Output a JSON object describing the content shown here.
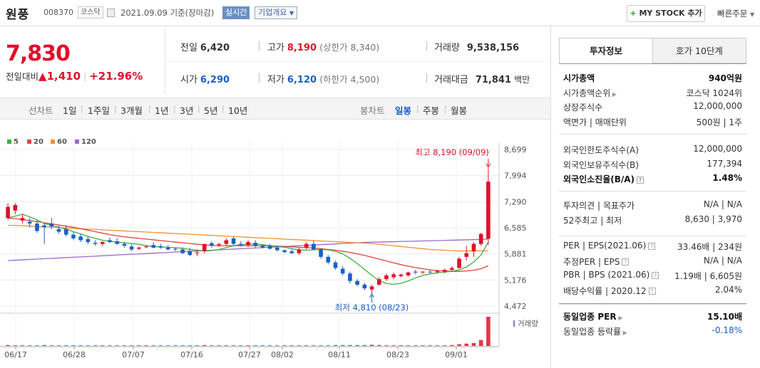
{
  "header": {
    "stock_name": "원풍",
    "stock_code": "008370",
    "market": "코스닥",
    "date": "2021.09.09 기준(장마감)",
    "realtime_label": "실시간",
    "corp_info_label": "기업개요",
    "my_stock_label": "MY STOCK 추가",
    "quick_order_label": "빠른주문"
  },
  "price": {
    "current": "7,830",
    "change_label": "전일대비",
    "change_value": "1,410",
    "change_pct": "+21.96%"
  },
  "stats": {
    "prev_label": "전일",
    "prev_value": "6,420",
    "high_label": "고가",
    "high_value": "8,190",
    "upper_limit": "(상한가 8,340)",
    "volume_label": "거래량",
    "volume_value": "9,538,156",
    "open_label": "시가",
    "open_value": "6,290",
    "low_label": "저가",
    "low_value": "6,120",
    "lower_limit": "(하한가 4,500)",
    "amount_label": "거래대금",
    "amount_value": "71,841",
    "amount_unit": "백만"
  },
  "period_tabs": {
    "line_label": "선차트",
    "line_items": [
      "1일",
      "1주일",
      "3개월",
      "1년",
      "3년",
      "5년",
      "10년"
    ],
    "candle_label": "봉차트",
    "candle_items": [
      "일봉",
      "주봉",
      "월봉"
    ],
    "selected_candle": "일봉"
  },
  "legend": [
    {
      "name": "5",
      "color": "#3fae3f"
    },
    {
      "name": "20",
      "color": "#e0443c"
    },
    {
      "name": "60",
      "color": "#f0932b"
    },
    {
      "name": "120",
      "color": "#9b6bcc"
    }
  ],
  "chart_data": {
    "type": "candlestick",
    "y_ticks": [
      "8,699",
      "7,994",
      "7,290",
      "6,585",
      "5,881",
      "5,176",
      "4,472"
    ],
    "ylim": [
      4472,
      8699
    ],
    "x_ticks": [
      "06/17",
      "06/28",
      "07/07",
      "07/16",
      "07/27",
      "08/02",
      "08/11",
      "08/23",
      "09/01"
    ],
    "high_annotation": "최고 8,190 (09/09)",
    "low_annotation": "최저 4,810 (08/23)",
    "volume_label": "거래량",
    "candles": [
      {
        "o": 6850,
        "h": 7250,
        "l": 6800,
        "c": 7150
      },
      {
        "o": 7050,
        "h": 7250,
        "l": 6950,
        "c": 7200
      },
      {
        "o": 6780,
        "h": 6950,
        "l": 6700,
        "c": 6850
      },
      {
        "o": 6750,
        "h": 6850,
        "l": 6600,
        "c": 6700
      },
      {
        "o": 6700,
        "h": 6780,
        "l": 6450,
        "c": 6500
      },
      {
        "o": 6650,
        "h": 6700,
        "l": 6150,
        "c": 6600
      },
      {
        "o": 6700,
        "h": 6850,
        "l": 6550,
        "c": 6620
      },
      {
        "o": 6550,
        "h": 6650,
        "l": 6420,
        "c": 6480
      },
      {
        "o": 6550,
        "h": 6650,
        "l": 6350,
        "c": 6400
      },
      {
        "o": 6400,
        "h": 6480,
        "l": 6250,
        "c": 6300
      },
      {
        "o": 6350,
        "h": 6420,
        "l": 6200,
        "c": 6250
      },
      {
        "o": 6280,
        "h": 6350,
        "l": 6150,
        "c": 6200
      },
      {
        "o": 6180,
        "h": 6250,
        "l": 6100,
        "c": 6150
      },
      {
        "o": 6150,
        "h": 6220,
        "l": 6080,
        "c": 6200
      },
      {
        "o": 6250,
        "h": 6320,
        "l": 6170,
        "c": 6200
      },
      {
        "o": 6220,
        "h": 6300,
        "l": 6130,
        "c": 6150
      },
      {
        "o": 6150,
        "h": 6200,
        "l": 6050,
        "c": 6100
      },
      {
        "o": 6080,
        "h": 6150,
        "l": 5950,
        "c": 6000
      },
      {
        "o": 6020,
        "h": 6080,
        "l": 5980,
        "c": 6050
      },
      {
        "o": 6060,
        "h": 6120,
        "l": 6030,
        "c": 6080
      },
      {
        "o": 6120,
        "h": 6200,
        "l": 6030,
        "c": 6050
      },
      {
        "o": 6080,
        "h": 6150,
        "l": 6020,
        "c": 6050
      },
      {
        "o": 6050,
        "h": 6120,
        "l": 5980,
        "c": 6000
      },
      {
        "o": 6020,
        "h": 6050,
        "l": 5950,
        "c": 6000
      },
      {
        "o": 6000,
        "h": 6060,
        "l": 5880,
        "c": 5900
      },
      {
        "o": 5950,
        "h": 6050,
        "l": 5820,
        "c": 5850
      },
      {
        "o": 5900,
        "h": 6000,
        "l": 5820,
        "c": 5920
      },
      {
        "o": 5950,
        "h": 6150,
        "l": 5900,
        "c": 6150
      },
      {
        "o": 6170,
        "h": 6220,
        "l": 6050,
        "c": 6100
      },
      {
        "o": 6120,
        "h": 6170,
        "l": 6070,
        "c": 6150
      },
      {
        "o": 6150,
        "h": 6300,
        "l": 6100,
        "c": 6250
      },
      {
        "o": 6300,
        "h": 6350,
        "l": 6100,
        "c": 6150
      },
      {
        "o": 6150,
        "h": 6230,
        "l": 6080,
        "c": 6120
      },
      {
        "o": 6120,
        "h": 6250,
        "l": 6070,
        "c": 6200
      },
      {
        "o": 6180,
        "h": 6250,
        "l": 6050,
        "c": 6100
      },
      {
        "o": 6100,
        "h": 6130,
        "l": 6030,
        "c": 6050
      },
      {
        "o": 6100,
        "h": 6150,
        "l": 6000,
        "c": 6020
      },
      {
        "o": 6050,
        "h": 6100,
        "l": 5950,
        "c": 5980
      },
      {
        "o": 5980,
        "h": 6000,
        "l": 5900,
        "c": 5930
      },
      {
        "o": 5950,
        "h": 6000,
        "l": 5880,
        "c": 5900
      },
      {
        "o": 5900,
        "h": 6050,
        "l": 5850,
        "c": 6000
      },
      {
        "o": 6050,
        "h": 6200,
        "l": 6000,
        "c": 6150
      },
      {
        "o": 6150,
        "h": 6250,
        "l": 6000,
        "c": 6000
      },
      {
        "o": 6000,
        "h": 6030,
        "l": 5750,
        "c": 5800
      },
      {
        "o": 5800,
        "h": 5850,
        "l": 5600,
        "c": 5650
      },
      {
        "o": 5650,
        "h": 5700,
        "l": 5450,
        "c": 5500
      },
      {
        "o": 5480,
        "h": 5550,
        "l": 5300,
        "c": 5350
      },
      {
        "o": 5350,
        "h": 5400,
        "l": 5080,
        "c": 5150
      },
      {
        "o": 5150,
        "h": 5200,
        "l": 5000,
        "c": 5050
      },
      {
        "o": 5050,
        "h": 5100,
        "l": 4900,
        "c": 4950
      },
      {
        "o": 4920,
        "h": 5050,
        "l": 4810,
        "c": 5000
      },
      {
        "o": 5050,
        "h": 5250,
        "l": 5020,
        "c": 5200
      },
      {
        "o": 5200,
        "h": 5350,
        "l": 5150,
        "c": 5300
      },
      {
        "o": 5250,
        "h": 5380,
        "l": 5200,
        "c": 5330
      },
      {
        "o": 5280,
        "h": 5350,
        "l": 5250,
        "c": 5320
      },
      {
        "o": 5300,
        "h": 5400,
        "l": 5270,
        "c": 5380
      },
      {
        "o": 5400,
        "h": 5450,
        "l": 5330,
        "c": 5380
      },
      {
        "o": 5380,
        "h": 5420,
        "l": 5340,
        "c": 5400
      },
      {
        "o": 5400,
        "h": 5440,
        "l": 5360,
        "c": 5380
      },
      {
        "o": 5390,
        "h": 5450,
        "l": 5350,
        "c": 5420
      },
      {
        "o": 5400,
        "h": 5480,
        "l": 5360,
        "c": 5450
      },
      {
        "o": 5450,
        "h": 5550,
        "l": 5400,
        "c": 5500
      },
      {
        "o": 5500,
        "h": 5800,
        "l": 5480,
        "c": 5750
      },
      {
        "o": 5800,
        "h": 6100,
        "l": 5700,
        "c": 5900
      },
      {
        "o": 5950,
        "h": 6200,
        "l": 5800,
        "c": 6150
      },
      {
        "o": 6150,
        "h": 6450,
        "l": 6100,
        "c": 6420
      },
      {
        "o": 6290,
        "h": 8190,
        "l": 6120,
        "c": 7830
      }
    ],
    "ma": {
      "5": [
        6850,
        6900,
        6950,
        6880,
        6800,
        6700,
        6650,
        6600,
        6550,
        6480,
        6420,
        6350,
        6300,
        6250,
        6220,
        6200,
        6180,
        6160,
        6140,
        6100,
        6080,
        6070,
        6060,
        6050,
        6030,
        6000,
        5980,
        5960,
        5970,
        6000,
        6050,
        6100,
        6130,
        6140,
        6150,
        6130,
        6100,
        6080,
        6060,
        6020,
        5990,
        5980,
        5990,
        6000,
        5990,
        5950,
        5880,
        5760,
        5620,
        5460,
        5300,
        5160,
        5080,
        5060,
        5090,
        5150,
        5230,
        5300,
        5340,
        5370,
        5390,
        5410,
        5450,
        5530,
        5660,
        5850,
        6200
      ],
      "20": [
        6850,
        6830,
        6810,
        6780,
        6750,
        6720,
        6690,
        6660,
        6630,
        6600,
        6560,
        6520,
        6480,
        6440,
        6400,
        6370,
        6340,
        6320,
        6300,
        6280,
        6260,
        6240,
        6220,
        6200,
        6180,
        6160,
        6140,
        6120,
        6110,
        6100,
        6100,
        6100,
        6100,
        6100,
        6100,
        6100,
        6100,
        6090,
        6080,
        6070,
        6060,
        6050,
        6040,
        6020,
        6000,
        5980,
        5950,
        5920,
        5880,
        5840,
        5790,
        5740,
        5690,
        5640,
        5590,
        5550,
        5510,
        5480,
        5450,
        5430,
        5420,
        5410,
        5410,
        5420,
        5440,
        5480,
        5560
      ],
      "60": [
        6650,
        6650,
        6640,
        6630,
        6620,
        6610,
        6600,
        6590,
        6580,
        6570,
        6560,
        6550,
        6540,
        6530,
        6520,
        6510,
        6500,
        6490,
        6480,
        6470,
        6460,
        6450,
        6440,
        6430,
        6420,
        6410,
        6400,
        6390,
        6380,
        6370,
        6360,
        6350,
        6340,
        6330,
        6320,
        6310,
        6300,
        6290,
        6280,
        6270,
        6260,
        6250,
        6240,
        6230,
        6220,
        6210,
        6200,
        6190,
        6180,
        6170,
        6160,
        6140,
        6120,
        6100,
        6080,
        6060,
        6040,
        6020,
        6000,
        5990,
        5980,
        5970,
        5960,
        5960,
        5960,
        5960,
        5970
      ],
      "120": [
        5700,
        5710,
        5720,
        5730,
        5740,
        5750,
        5760,
        5770,
        5780,
        5790,
        5800,
        5810,
        5820,
        5830,
        5840,
        5850,
        5860,
        5870,
        5880,
        5890,
        5900,
        5910,
        5920,
        5930,
        5940,
        5950,
        5960,
        5970,
        5980,
        5990,
        6000,
        6010,
        6020,
        6030,
        6040,
        6050,
        6060,
        6070,
        6080,
        6090,
        6100,
        6110,
        6120,
        6130,
        6140,
        6150,
        6160,
        6170,
        6180,
        6190,
        6195,
        6200,
        6205,
        6210,
        6215,
        6220,
        6225,
        6230,
        6235,
        6240,
        6245,
        6250,
        6255,
        6260,
        6265,
        6270,
        6280
      ]
    },
    "volumes": [
      3,
      2,
      2,
      2,
      2,
      3,
      2,
      2,
      2,
      2,
      2,
      2,
      2,
      2,
      2,
      2,
      2,
      2,
      2,
      2,
      2,
      2,
      2,
      2,
      2,
      2,
      2,
      3,
      2,
      2,
      2,
      2,
      2,
      2,
      2,
      2,
      2,
      2,
      2,
      2,
      2,
      2,
      2,
      2,
      2,
      3,
      3,
      3,
      3,
      3,
      4,
      3,
      2,
      2,
      2,
      2,
      2,
      2,
      2,
      2,
      2,
      3,
      6,
      8,
      10,
      20,
      100
    ]
  },
  "side_panel": {
    "tab_info": "투자정보",
    "tab_quote": "호가 10단계",
    "rows1": [
      {
        "k": "시가총액",
        "v": "940억원",
        "bold": true
      },
      {
        "k": "시가총액순위",
        "v": "코스닥 1024위"
      },
      {
        "k": "상장주식수",
        "v": "12,000,000"
      },
      {
        "k": "액면가 | 매매단위",
        "v": "500원 | 1주"
      }
    ],
    "rows2": [
      {
        "k": "외국인한도주식수(A)",
        "v": "12,000,000"
      },
      {
        "k": "외국인보유주식수(B)",
        "v": "177,394"
      },
      {
        "k": "외국인소진율(B/A)",
        "v": "1.48%",
        "bold": true
      }
    ],
    "rows3": [
      {
        "k": "투자의견 | 목표주가",
        "v": "N/A | N/A"
      },
      {
        "k": "52주최고 | 최저",
        "v": "8,630 | 3,970"
      }
    ],
    "rows4": [
      {
        "k": "PER | EPS(2021.06)",
        "v": "33.46배 | 234원"
      },
      {
        "k": "추정PER | EPS",
        "v": "N/A | N/A"
      },
      {
        "k": "PBR | BPS (2021.06)",
        "v": "1.19배 | 6,605원"
      },
      {
        "k": "배당수익률 | 2020.12",
        "v": "2.04%"
      }
    ],
    "rows5": [
      {
        "k": "동일업종 PER",
        "v": "15.10배",
        "bold": true
      },
      {
        "k": "동일업종 등락률",
        "v": "-0.18%"
      }
    ]
  }
}
